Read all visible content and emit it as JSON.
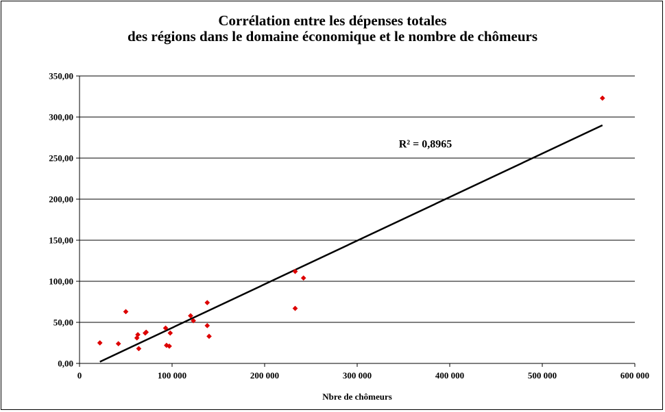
{
  "chart_data": {
    "type": "scatter",
    "title": [
      "Corrélation entre les dépenses totales",
      "des régions dans le domaine économique et le nombre de chômeurs"
    ],
    "xlabel": "Nbre de chômeurs",
    "ylabel": "",
    "xlim": [
      0,
      600000
    ],
    "ylim": [
      0,
      350
    ],
    "x_ticks": [
      0,
      100000,
      200000,
      300000,
      400000,
      500000,
      600000
    ],
    "x_tick_labels": [
      "0",
      "100 000",
      "200 000",
      "300 000",
      "400 000",
      "500 000",
      "600 000"
    ],
    "y_ticks": [
      0,
      50,
      100,
      150,
      200,
      250,
      300,
      350
    ],
    "y_tick_labels": [
      "0,00",
      "50,00",
      "100,00",
      "150,00",
      "200,00",
      "250,00",
      "300,00",
      "350,00"
    ],
    "grid": "horizontal",
    "marker_color": "#dd0000",
    "points": [
      {
        "x": 22000,
        "y": 25
      },
      {
        "x": 42000,
        "y": 24
      },
      {
        "x": 50000,
        "y": 63
      },
      {
        "x": 62000,
        "y": 31
      },
      {
        "x": 63000,
        "y": 35
      },
      {
        "x": 64000,
        "y": 18
      },
      {
        "x": 71000,
        "y": 37
      },
      {
        "x": 72000,
        "y": 38
      },
      {
        "x": 93000,
        "y": 43
      },
      {
        "x": 94000,
        "y": 22
      },
      {
        "x": 97000,
        "y": 21
      },
      {
        "x": 98000,
        "y": 37
      },
      {
        "x": 120000,
        "y": 58
      },
      {
        "x": 123000,
        "y": 52
      },
      {
        "x": 138000,
        "y": 74
      },
      {
        "x": 138000,
        "y": 46
      },
      {
        "x": 140000,
        "y": 33
      },
      {
        "x": 233000,
        "y": 112
      },
      {
        "x": 233000,
        "y": 67
      },
      {
        "x": 242000,
        "y": 104
      },
      {
        "x": 565000,
        "y": 323
      }
    ],
    "trendline": {
      "type": "linear",
      "color": "#000000",
      "from": {
        "x": 22000,
        "y": 2
      },
      "to": {
        "x": 565000,
        "y": 290
      },
      "label": "R² = 0,8965",
      "label_at": {
        "x": 345000,
        "y": 263
      }
    }
  }
}
